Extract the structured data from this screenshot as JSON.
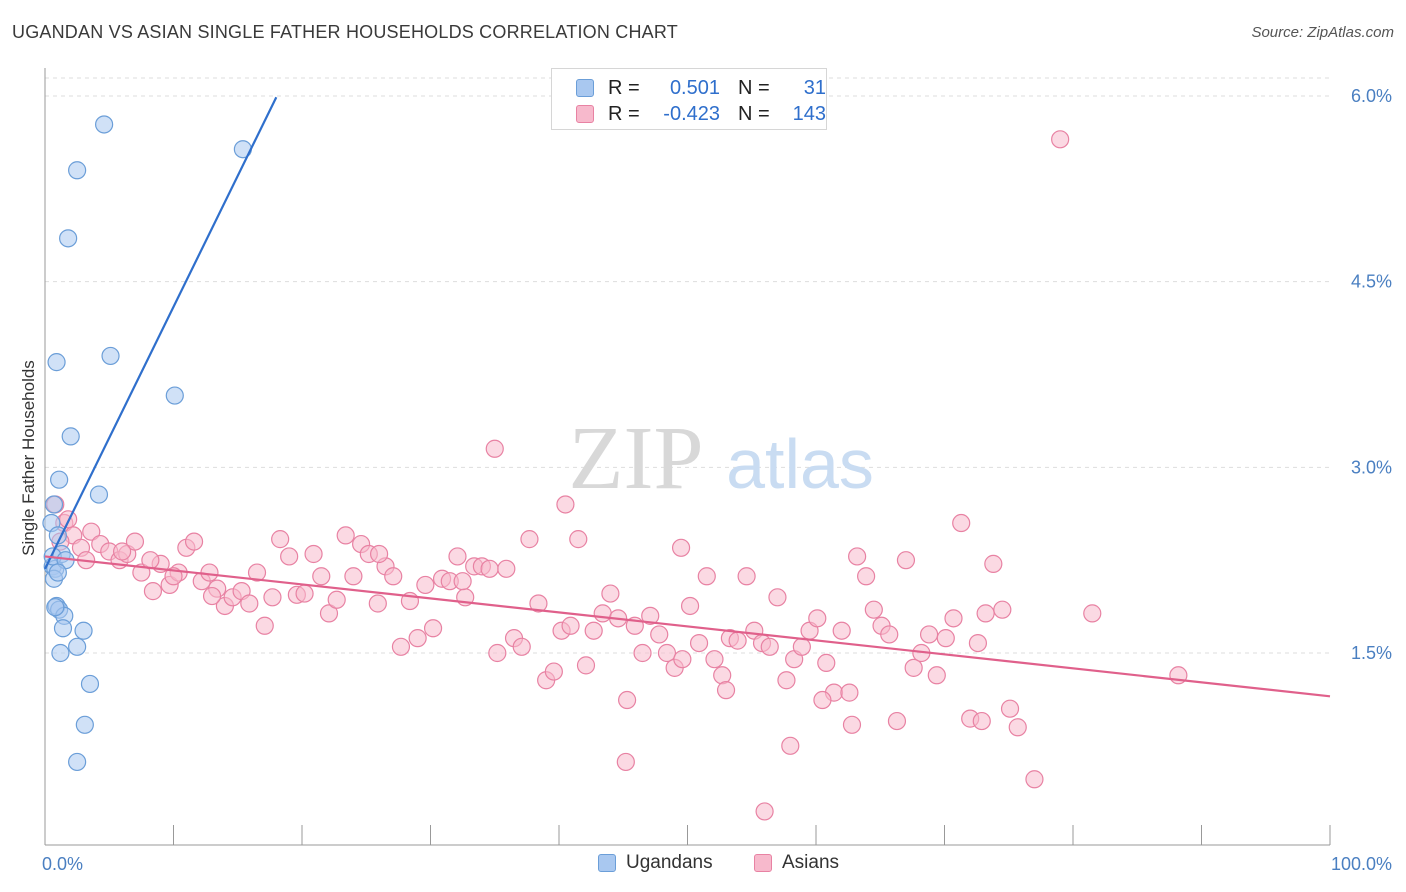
{
  "title": "UGANDAN VS ASIAN SINGLE FATHER HOUSEHOLDS CORRELATION CHART",
  "source": "Source: ZipAtlas.com",
  "watermark": {
    "zip": "ZIP",
    "atlas": "atlas"
  },
  "legend": {
    "rows": [
      {
        "r_label": "R =",
        "r_value": "0.501",
        "n_label": "N =",
        "n_value": "31",
        "color": "#a9c8f0",
        "border": "#6b9ed8"
      },
      {
        "r_label": "R =",
        "r_value": "-0.423",
        "n_label": "N =",
        "n_value": "143",
        "color": "#f7b9cc",
        "border": "#e882a3"
      }
    ]
  },
  "bottom_legend": {
    "series_1": "Ugandans",
    "series_2": "Asians"
  },
  "chart_data": {
    "type": "scatter",
    "title": "UGANDAN VS ASIAN SINGLE FATHER HOUSEHOLDS CORRELATION CHART",
    "ylabel": "Single Father Households",
    "xlabel": "",
    "x_tick_labels": [
      "0.0%",
      "100.0%"
    ],
    "y_tick_labels": [
      "1.5%",
      "3.0%",
      "4.5%",
      "6.0%"
    ],
    "y_ticks": [
      1.5,
      3.0,
      4.5,
      6.0
    ],
    "xlim": [
      0,
      100
    ],
    "ylim": [
      0,
      6.2
    ],
    "grid": true,
    "series": [
      {
        "name": "Ugandans",
        "color": "#6b9ed8",
        "fill": "#a9c8f0",
        "trend": {
          "x0": 0,
          "y0": 2.18,
          "x1": 18,
          "y1": 5.99,
          "color": "#2f6fcc"
        },
        "points": [
          [
            0.5,
            2.55
          ],
          [
            0.6,
            2.2
          ],
          [
            0.7,
            2.7
          ],
          [
            0.8,
            2.18
          ],
          [
            0.9,
            1.88
          ],
          [
            1.0,
            2.45
          ],
          [
            1.1,
            1.85
          ],
          [
            1.3,
            2.3
          ],
          [
            1.5,
            1.8
          ],
          [
            0.7,
            2.1
          ],
          [
            0.9,
            3.85
          ],
          [
            1.1,
            2.9
          ],
          [
            1.2,
            1.5
          ],
          [
            1.4,
            1.7
          ],
          [
            2.0,
            3.25
          ],
          [
            2.5,
            1.55
          ],
          [
            3.0,
            1.68
          ],
          [
            3.5,
            1.25
          ],
          [
            1.8,
            4.85
          ],
          [
            2.5,
            5.4
          ],
          [
            4.6,
            5.77
          ],
          [
            15.4,
            5.57
          ],
          [
            5.1,
            3.9
          ],
          [
            10.1,
            3.58
          ],
          [
            4.2,
            2.78
          ],
          [
            3.1,
            0.92
          ],
          [
            2.5,
            0.62
          ],
          [
            0.6,
            2.28
          ],
          [
            0.8,
            1.87
          ],
          [
            1.6,
            2.25
          ],
          [
            1.0,
            2.15
          ]
        ]
      },
      {
        "name": "Asians",
        "color": "#e882a3",
        "fill": "#f7b9cc",
        "trend": {
          "x0": 0,
          "y0": 2.28,
          "x1": 100,
          "y1": 1.15,
          "color": "#e0608b"
        },
        "points": [
          [
            0.8,
            2.7
          ],
          [
            1.5,
            2.55
          ],
          [
            2.2,
            2.45
          ],
          [
            2.8,
            2.35
          ],
          [
            3.6,
            2.48
          ],
          [
            4.3,
            2.38
          ],
          [
            5.0,
            2.32
          ],
          [
            5.8,
            2.25
          ],
          [
            6.4,
            2.3
          ],
          [
            7.0,
            2.4
          ],
          [
            7.5,
            2.15
          ],
          [
            8.4,
            2.0
          ],
          [
            9.0,
            2.22
          ],
          [
            9.7,
            2.05
          ],
          [
            10.4,
            2.15
          ],
          [
            11.0,
            2.35
          ],
          [
            11.6,
            2.4
          ],
          [
            12.2,
            2.08
          ],
          [
            12.8,
            2.15
          ],
          [
            13.4,
            2.02
          ],
          [
            14.0,
            1.88
          ],
          [
            14.6,
            1.95
          ],
          [
            15.3,
            2.0
          ],
          [
            15.9,
            1.9
          ],
          [
            16.5,
            2.15
          ],
          [
            17.1,
            1.72
          ],
          [
            17.7,
            1.95
          ],
          [
            18.3,
            2.42
          ],
          [
            19.0,
            2.28
          ],
          [
            19.6,
            1.97
          ],
          [
            20.2,
            1.98
          ],
          [
            20.9,
            2.3
          ],
          [
            21.5,
            2.12
          ],
          [
            22.1,
            1.82
          ],
          [
            22.7,
            1.93
          ],
          [
            23.4,
            2.45
          ],
          [
            24.0,
            2.12
          ],
          [
            24.6,
            2.38
          ],
          [
            25.2,
            2.3
          ],
          [
            25.9,
            1.9
          ],
          [
            26.5,
            2.2
          ],
          [
            27.1,
            2.12
          ],
          [
            27.7,
            1.55
          ],
          [
            28.4,
            1.92
          ],
          [
            29.0,
            1.62
          ],
          [
            29.6,
            2.05
          ],
          [
            30.2,
            1.7
          ],
          [
            30.9,
            2.1
          ],
          [
            31.5,
            2.08
          ],
          [
            32.1,
            2.28
          ],
          [
            32.7,
            1.95
          ],
          [
            33.4,
            2.2
          ],
          [
            34.0,
            2.2
          ],
          [
            34.6,
            2.18
          ],
          [
            35.2,
            1.5
          ],
          [
            35.9,
            2.18
          ],
          [
            36.5,
            1.62
          ],
          [
            37.1,
            1.55
          ],
          [
            37.7,
            2.42
          ],
          [
            38.4,
            1.9
          ],
          [
            39.0,
            1.28
          ],
          [
            39.6,
            1.35
          ],
          [
            40.2,
            1.68
          ],
          [
            40.9,
            1.72
          ],
          [
            41.5,
            2.42
          ],
          [
            42.1,
            1.4
          ],
          [
            42.7,
            1.68
          ],
          [
            43.4,
            1.82
          ],
          [
            44.0,
            1.98
          ],
          [
            44.6,
            1.78
          ],
          [
            45.3,
            1.12
          ],
          [
            45.9,
            1.72
          ],
          [
            46.5,
            1.5
          ],
          [
            47.1,
            1.8
          ],
          [
            47.8,
            1.65
          ],
          [
            48.4,
            1.5
          ],
          [
            49.0,
            1.38
          ],
          [
            49.6,
            1.45
          ],
          [
            50.2,
            1.88
          ],
          [
            50.9,
            1.58
          ],
          [
            51.5,
            2.12
          ],
          [
            52.1,
            1.45
          ],
          [
            52.7,
            1.32
          ],
          [
            53.3,
            1.62
          ],
          [
            53.9,
            1.6
          ],
          [
            54.6,
            2.12
          ],
          [
            55.2,
            1.68
          ],
          [
            55.8,
            1.58
          ],
          [
            56.4,
            1.55
          ],
          [
            57.0,
            1.95
          ],
          [
            57.7,
            1.28
          ],
          [
            58.3,
            1.45
          ],
          [
            58.9,
            1.55
          ],
          [
            59.5,
            1.68
          ],
          [
            60.1,
            1.78
          ],
          [
            60.8,
            1.42
          ],
          [
            61.4,
            1.18
          ],
          [
            62.0,
            1.68
          ],
          [
            62.6,
            1.18
          ],
          [
            63.2,
            2.28
          ],
          [
            63.9,
            2.12
          ],
          [
            64.5,
            1.85
          ],
          [
            65.1,
            1.72
          ],
          [
            65.7,
            1.65
          ],
          [
            66.3,
            0.95
          ],
          [
            67.0,
            2.25
          ],
          [
            67.6,
            1.38
          ],
          [
            68.2,
            1.5
          ],
          [
            68.8,
            1.65
          ],
          [
            69.4,
            1.32
          ],
          [
            70.1,
            1.62
          ],
          [
            70.7,
            1.78
          ],
          [
            71.3,
            2.55
          ],
          [
            72.0,
            0.97
          ],
          [
            72.6,
            1.58
          ],
          [
            73.2,
            1.82
          ],
          [
            73.8,
            2.22
          ],
          [
            74.5,
            1.85
          ],
          [
            75.1,
            1.05
          ],
          [
            75.7,
            0.9
          ],
          [
            81.5,
            1.82
          ],
          [
            88.2,
            1.32
          ],
          [
            79.0,
            5.65
          ],
          [
            35.0,
            3.15
          ],
          [
            40.5,
            2.7
          ],
          [
            77.0,
            0.48
          ],
          [
            58.0,
            0.75
          ],
          [
            45.2,
            0.62
          ],
          [
            56.0,
            0.22
          ],
          [
            32.5,
            2.08
          ],
          [
            26.0,
            2.3
          ],
          [
            49.5,
            2.35
          ],
          [
            62.8,
            0.92
          ],
          [
            60.5,
            1.12
          ],
          [
            53.0,
            1.2
          ],
          [
            72.9,
            0.95
          ],
          [
            10.0,
            2.12
          ],
          [
            8.2,
            2.25
          ],
          [
            6.0,
            2.32
          ],
          [
            3.2,
            2.25
          ],
          [
            1.8,
            2.58
          ],
          [
            1.2,
            2.4
          ],
          [
            13.0,
            1.96
          ]
        ]
      }
    ]
  }
}
